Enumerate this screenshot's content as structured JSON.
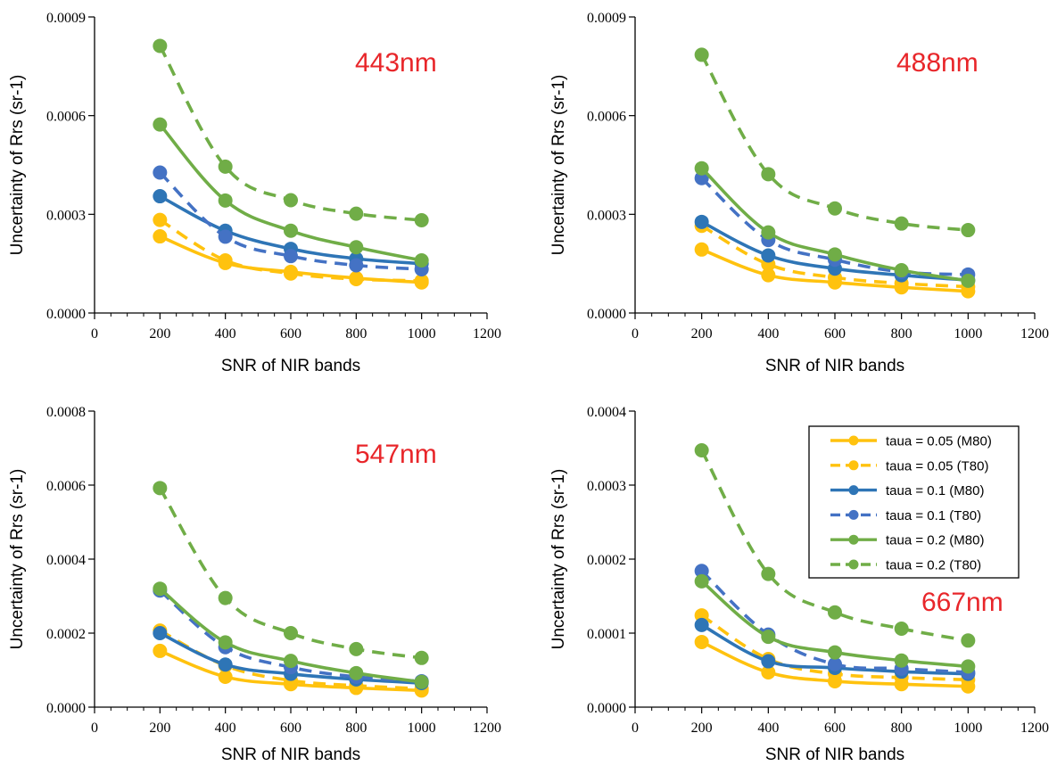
{
  "figure": {
    "x_axis_title": "SNR of NIR bands",
    "y_axis_title": "Uncertainty of Rrs (sr-1)"
  },
  "legend": [
    {
      "label": "taua = 0.05 (M80)",
      "color": "#ffc20e",
      "dashed": false
    },
    {
      "label": "taua = 0.05 (T80)",
      "color": "#ffc20e",
      "dashed": true
    },
    {
      "label": "taua = 0.1 (M80)",
      "color": "#2e75b6",
      "dashed": false
    },
    {
      "label": "taua = 0.1 (T80)",
      "color": "#4472c4",
      "dashed": true
    },
    {
      "label": "taua = 0.2 (M80)",
      "color": "#70ad47",
      "dashed": false
    },
    {
      "label": "taua = 0.2 (T80)",
      "color": "#70ad47",
      "dashed": true
    }
  ],
  "chart_data": [
    {
      "type": "line",
      "annotation": "443nm",
      "x": [
        200,
        400,
        600,
        800,
        1000
      ],
      "xlim": [
        0,
        1200
      ],
      "xticks": [
        "0",
        "200",
        "400",
        "600",
        "800",
        "1000",
        "1200"
      ],
      "ylim": [
        0,
        0.0009
      ],
      "yticks": [
        "0.0000",
        "0.0003",
        "0.0006",
        "0.0009"
      ],
      "xlabel": "SNR of NIR bands",
      "ylabel": "Uncertainty of Rrs (sr-1)",
      "series": [
        {
          "name": "taua = 0.05 (M80)",
          "values": [
            0.000233,
            0.000152,
            0.000125,
            0.000106,
            9.3e-05
          ]
        },
        {
          "name": "taua = 0.05 (T80)",
          "values": [
            0.000283,
            0.00016,
            0.00012,
            0.000103,
            9.8e-05
          ]
        },
        {
          "name": "taua = 0.1 (M80)",
          "values": [
            0.000355,
            0.00025,
            0.000195,
            0.000165,
            0.00015
          ]
        },
        {
          "name": "taua = 0.1 (T80)",
          "values": [
            0.000427,
            0.000232,
            0.000173,
            0.000145,
            0.000133
          ]
        },
        {
          "name": "taua = 0.2 (M80)",
          "values": [
            0.000573,
            0.000342,
            0.00025,
            0.0002,
            0.00016
          ]
        },
        {
          "name": "taua = 0.2 (T80)",
          "values": [
            0.000812,
            0.000445,
            0.000343,
            0.000302,
            0.000282
          ]
        }
      ]
    },
    {
      "type": "line",
      "annotation": "488nm",
      "x": [
        200,
        400,
        600,
        800,
        1000
      ],
      "xlim": [
        0,
        1200
      ],
      "xticks": [
        "0",
        "200",
        "400",
        "600",
        "800",
        "1000",
        "1200"
      ],
      "ylim": [
        0,
        0.0009
      ],
      "yticks": [
        "0.0000",
        "0.0003",
        "0.0006",
        "0.0009"
      ],
      "xlabel": "SNR of NIR bands",
      "ylabel": "Uncertainty of Rrs (sr-1)",
      "series": [
        {
          "name": "taua = 0.05 (M80)",
          "values": [
            0.000193,
            0.000115,
            9.3e-05,
            7.8e-05,
            6.6e-05
          ]
        },
        {
          "name": "taua = 0.05 (T80)",
          "values": [
            0.000265,
            0.000148,
            0.000108,
            9e-05,
            8e-05
          ]
        },
        {
          "name": "taua = 0.1 (M80)",
          "values": [
            0.000277,
            0.000175,
            0.000135,
            0.000115,
            0.0001
          ]
        },
        {
          "name": "taua = 0.1 (T80)",
          "values": [
            0.00041,
            0.000222,
            0.000162,
            0.000125,
            0.000117
          ]
        },
        {
          "name": "taua = 0.2 (M80)",
          "values": [
            0.00044,
            0.000245,
            0.000178,
            0.00013,
            9.8e-05
          ]
        },
        {
          "name": "taua = 0.2 (T80)",
          "values": [
            0.000785,
            0.000422,
            0.000318,
            0.000272,
            0.000252
          ]
        }
      ]
    },
    {
      "type": "line",
      "annotation": "547nm",
      "x": [
        200,
        400,
        600,
        800,
        1000
      ],
      "xlim": [
        0,
        1200
      ],
      "xticks": [
        "0",
        "200",
        "400",
        "600",
        "800",
        "1000",
        "1200"
      ],
      "ylim": [
        0,
        0.0008
      ],
      "yticks": [
        "0.0000",
        "0.0002",
        "0.0004",
        "0.0006",
        "0.0008"
      ],
      "xlabel": "SNR of NIR bands",
      "ylabel": "Uncertainty of Rrs (sr-1)",
      "series": [
        {
          "name": "taua = 0.05 (M80)",
          "values": [
            0.000152,
            8.2e-05,
            6.2e-05,
            5.2e-05,
            4.5e-05
          ]
        },
        {
          "name": "taua = 0.05 (T80)",
          "values": [
            0.000207,
            0.000112,
            7.2e-05,
            5.8e-05,
            5e-05
          ]
        },
        {
          "name": "taua = 0.1 (M80)",
          "values": [
            0.0002,
            0.000115,
            9e-05,
            7.5e-05,
            6.5e-05
          ]
        },
        {
          "name": "taua = 0.1 (T80)",
          "values": [
            0.000315,
            0.000162,
            0.000108,
            8.2e-05,
            7e-05
          ]
        },
        {
          "name": "taua = 0.2 (M80)",
          "values": [
            0.00032,
            0.000175,
            0.000125,
            9.2e-05,
            6.8e-05
          ]
        },
        {
          "name": "taua = 0.2 (T80)",
          "values": [
            0.000592,
            0.000295,
            0.0002,
            0.000157,
            0.000133
          ]
        }
      ]
    },
    {
      "type": "line",
      "annotation": "667nm",
      "x": [
        200,
        400,
        600,
        800,
        1000
      ],
      "xlim": [
        0,
        1200
      ],
      "xticks": [
        "0",
        "200",
        "400",
        "600",
        "800",
        "1000",
        "1200"
      ],
      "ylim": [
        0,
        0.0004
      ],
      "yticks": [
        "0.0000",
        "0.0001",
        "0.0002",
        "0.0003",
        "0.0004"
      ],
      "xlabel": "SNR of NIR bands",
      "ylabel": "Uncertainty of Rrs (sr-1)",
      "series": [
        {
          "name": "taua = 0.05 (M80)",
          "values": [
            8.8e-05,
            4.7e-05,
            3.5e-05,
            3.1e-05,
            2.8e-05
          ]
        },
        {
          "name": "taua = 0.05 (T80)",
          "values": [
            0.000124,
            6.5e-05,
            4.5e-05,
            4e-05,
            3.7e-05
          ]
        },
        {
          "name": "taua = 0.1 (M80)",
          "values": [
            0.000111,
            6.2e-05,
            5.3e-05,
            4.8e-05,
            4.5e-05
          ]
        },
        {
          "name": "taua = 0.1 (T80)",
          "values": [
            0.000184,
            9.8e-05,
            5.8e-05,
            5.2e-05,
            4.7e-05
          ]
        },
        {
          "name": "taua = 0.2 (M80)",
          "values": [
            0.00017,
            9.5e-05,
            7.4e-05,
            6.3e-05,
            5.5e-05
          ]
        },
        {
          "name": "taua = 0.2 (T80)",
          "values": [
            0.000347,
            0.00018,
            0.000128,
            0.000106,
            9e-05
          ]
        }
      ]
    }
  ]
}
